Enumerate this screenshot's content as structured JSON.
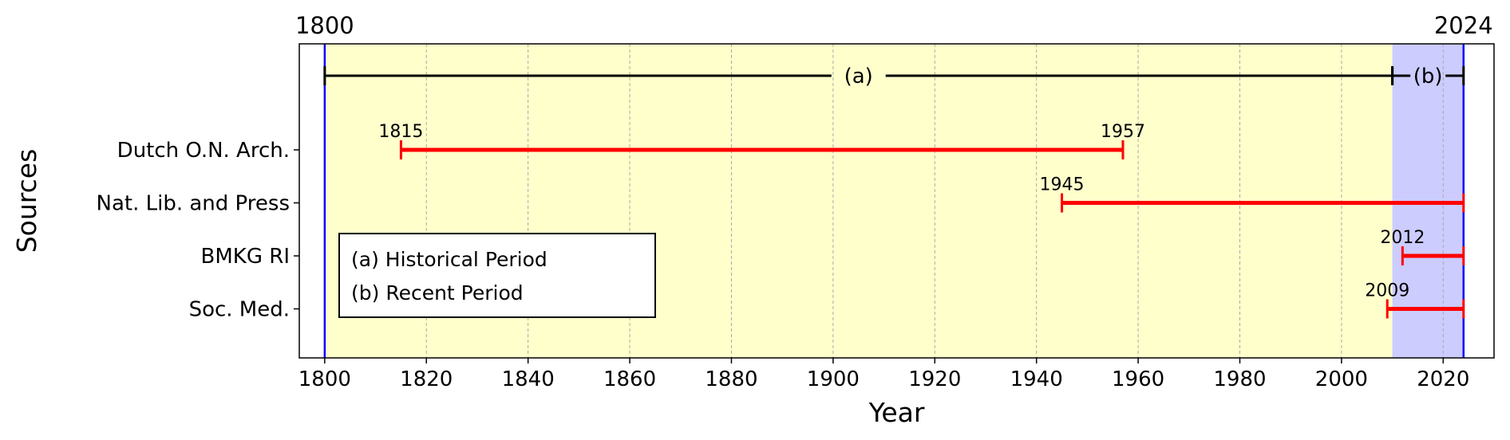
{
  "chart_data": {
    "type": "timeline",
    "xlabel": "Year",
    "ylabel": "Sources",
    "xlim": [
      1795,
      2030
    ],
    "x_ticks": [
      1800,
      1820,
      1840,
      1860,
      1880,
      1900,
      1920,
      1940,
      1960,
      1980,
      2000,
      2020
    ],
    "grid": "vertical dashed",
    "boundary_labels": [
      "1800",
      "2024"
    ],
    "boundaries": [
      1800,
      2024
    ],
    "periods": [
      {
        "label": "(a)",
        "start": 1800,
        "end": 2010,
        "color": "#ffffcc"
      },
      {
        "label": "(b)",
        "start": 2010,
        "end": 2024,
        "color": "#ccccff"
      }
    ],
    "sources": [
      {
        "name": "Dutch O.N. Arch.",
        "start": 1815,
        "end": 1957,
        "start_label": "1815",
        "end_label": "1957"
      },
      {
        "name": "Nat. Lib. and Press",
        "start": 1945,
        "end": 2024,
        "start_label": "1945"
      },
      {
        "name": "BMKG RI",
        "start": 2012,
        "end": 2024,
        "start_label": "2012"
      },
      {
        "name": "Soc. Med.",
        "start": 2009,
        "end": 2024,
        "start_label": "2009"
      }
    ],
    "legend": {
      "placement": "lower-left",
      "entries": [
        "(a) Historical Period",
        "(b) Recent Period"
      ]
    },
    "colors": {
      "bar": "#ff0000",
      "boundary": "#0000ff",
      "period_line": "#000000"
    }
  }
}
